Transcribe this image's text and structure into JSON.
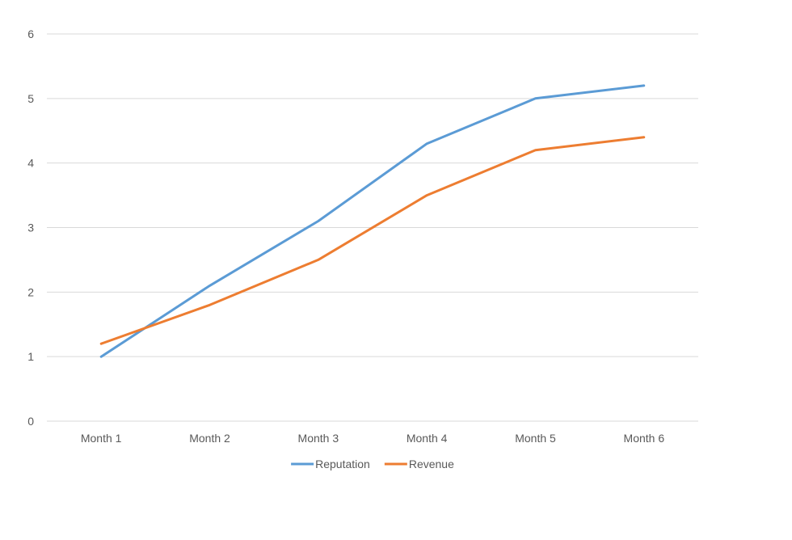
{
  "chart_data": {
    "type": "line",
    "title": "",
    "xlabel": "",
    "ylabel": "",
    "categories": [
      "Month 1",
      "Month 2",
      "Month 3",
      "Month 4",
      "Month 5",
      "Month 6"
    ],
    "ylim": [
      0,
      6
    ],
    "yticks": [
      0,
      1,
      2,
      3,
      4,
      5,
      6
    ],
    "grid": true,
    "legend_position": "bottom",
    "series": [
      {
        "name": "Reputation",
        "color": "#5b9bd5",
        "values": [
          1.0,
          2.1,
          3.1,
          4.3,
          5.0,
          5.2
        ]
      },
      {
        "name": "Revenue",
        "color": "#ed7d31",
        "values": [
          1.2,
          1.8,
          2.5,
          3.5,
          4.2,
          4.4
        ]
      }
    ]
  }
}
